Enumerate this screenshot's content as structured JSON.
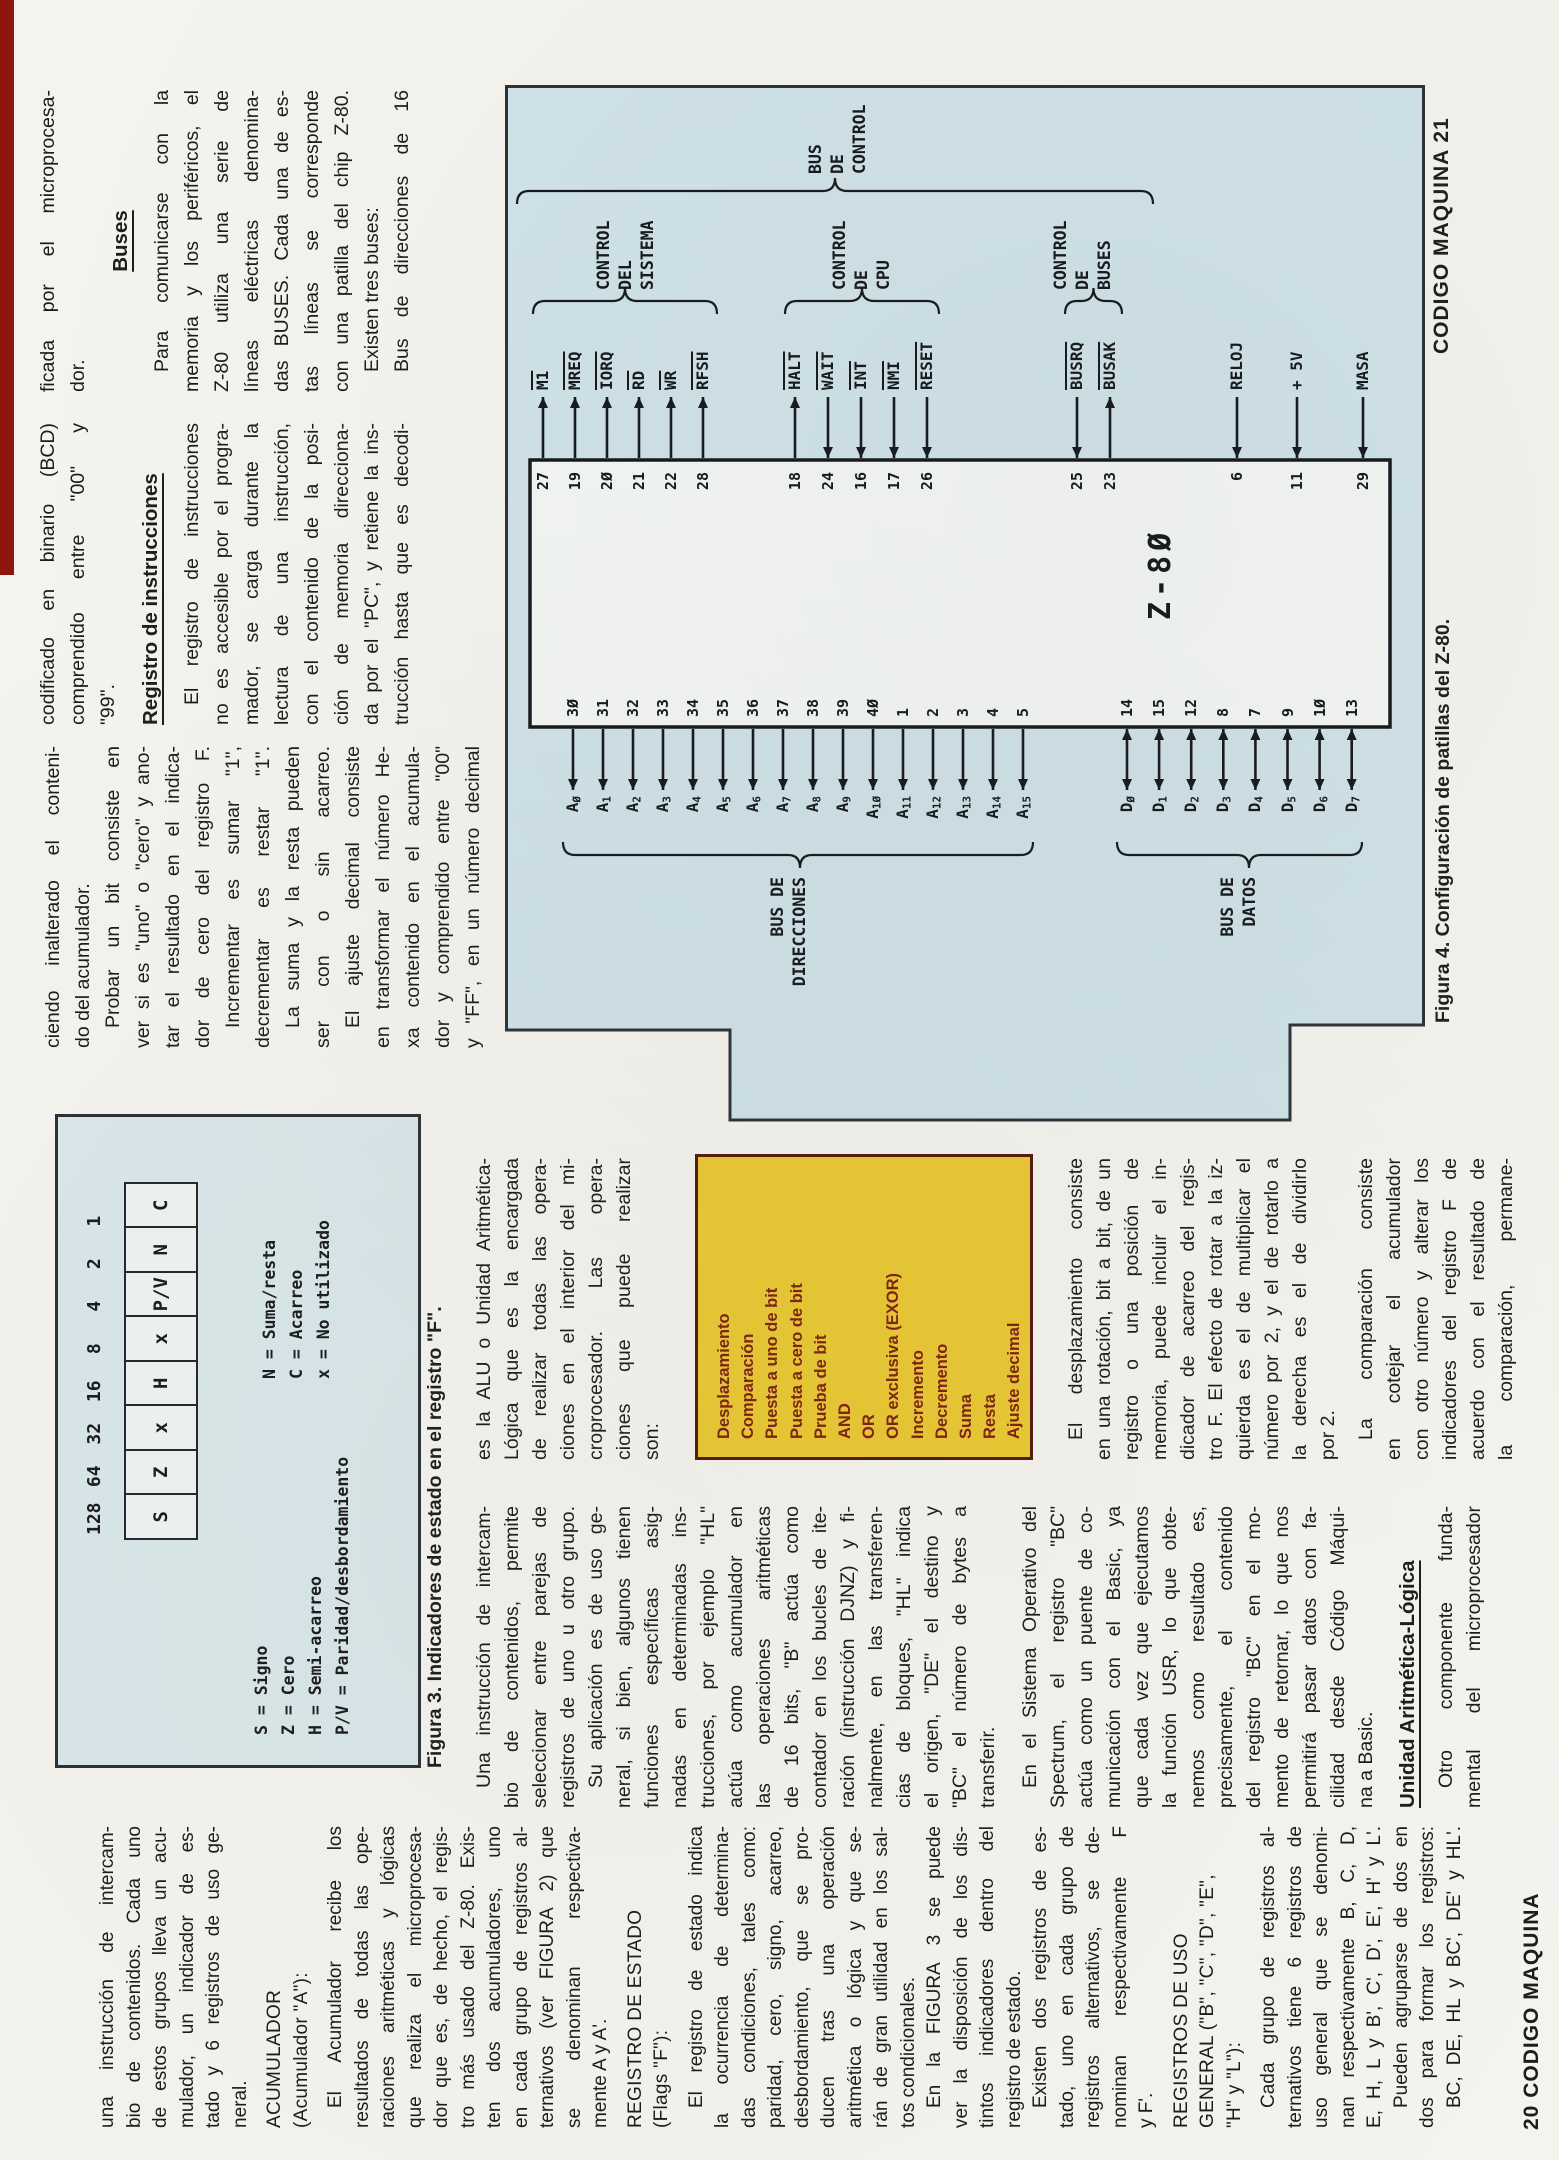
{
  "footer_left": "20 CODIGO MAQUINA",
  "footer_right": "CODIGO MAQUINA 21",
  "colors": {
    "paper": "#f4f3ee",
    "fig4_box": "#cfe2e8",
    "fig3_box": "#d9e7ea",
    "yellow_box": "#e9c832",
    "yellow_text": "#7c2110",
    "red_bar": "#8e160e",
    "ink": "#1b1b1b"
  },
  "col1": {
    "p1": [
      "una instrucción de intercam-",
      "bio de contenidos. Cada uno",
      "de estos grupos lleva un acu-",
      "mulador, un indicador de es-",
      "tado y 6 registros de uso ge-",
      "neral."
    ],
    "h1": [
      "ACUMULADOR",
      "(Acumulador \"A\"):"
    ],
    "p2": [
      "El Acumulador recibe los",
      "resultados de todas las ope-",
      "raciones aritméticas y lógicas",
      "que realiza el microprocesa-",
      "dor que es, de hecho, el regis-",
      "tro más usado del Z-80. Exis-",
      "ten dos acumuladores, uno",
      "en cada grupo de registros al-",
      "ternativos (ver FIGURA 2) que",
      "se denominan respectiva-",
      "mente A y A'."
    ],
    "h2": [
      "REGISTRO DE ESTADO",
      "(Flags \"F\"):"
    ],
    "p3": [
      "El registro de estado indica",
      "la ocurrencia de determina-",
      "das condiciones, tales como:",
      "paridad, cero, signo, acarreo,",
      "desbordamiento, que se pro-",
      "ducen tras una operación",
      "aritmética o lógica y que se-",
      "rán de gran utilidad en los sal-",
      "tos condicionales.",
      "En la FIGURA 3 se puede",
      "ver la disposición de los dis-",
      "tintos indicadores dentro del",
      "registro de estado.",
      "Existen dos registros de es-",
      "tado, uno en cada grupo de",
      "registros alternativos, se de-",
      "nominan respectivamente F",
      "y F'."
    ],
    "h3": [
      "REGISTROS DE USO",
      "GENERAL (\"B\", \"C\", \"D\", \"E\",",
      "\"H\" y \"L\"):"
    ],
    "p4": [
      "Cada grupo de registros al-",
      "ternativos tiene 6 registros de",
      "uso general que se denomi-",
      "nan respectivamente B, C, D,",
      "E, H, L y B', C', D', E', H' y L'.",
      "Pueden agruparse de dos en",
      "dos para formar los registros:",
      "BC, DE, HL y BC', DE' y HL'."
    ]
  },
  "col2": {
    "p1": [
      "Una instrucción de intercam-",
      "bio de contenidos, permite",
      "seleccionar entre parejas de",
      "registros de uno u otro grupo.",
      "Su aplicación es de uso ge-",
      "neral, si bien, algunos tienen",
      "funciones específicas asig-",
      "nadas en determinadas ins-",
      "trucciones, por ejemplo \"HL\"",
      "actúa como acumulador en",
      "las operaciones aritméticas",
      "de 16 bits, \"B\" actúa como",
      "contador en los bucles de ite-",
      "ración (instrucción DJNZ) y fi-",
      "nalmente, en las transferen-",
      "cias de bloques, \"HL\" indica",
      "el origen, \"DE\" el destino y",
      "\"BC\" el número de bytes a",
      "transferir."
    ],
    "p2": [
      "En el Sistema Operativo del",
      "Spectrum, el registro \"BC\"",
      "actúa como un puente de co-",
      "municación con el Basic, ya",
      "que cada vez que ejecutamos",
      "la función USR, lo que obte-",
      "nemos como resultado es,",
      "precisamente, el contenido",
      "del registro \"BC\" en el mo-",
      "mento de retornar, lo que nos",
      "permitirá pasar datos con fa-",
      "cilidad desde Código Máqui-",
      "na a Basic."
    ],
    "heading": "Unidad Aritmética-Lógica",
    "p3": [
      "Otro componente funda-",
      "mental del microprocesador"
    ]
  },
  "col3": {
    "p1": [
      "es la ALU o Unidad Aritmética-",
      "Lógica que es la encargada",
      "de realizar todas las opera-",
      "ciones en el interior del mi-",
      "croprocesador. Las opera-",
      "ciones que puede realizar",
      "son:"
    ],
    "p2": [
      "El desplazamiento consiste",
      "en una rotación, bit a bit, de un",
      "registro o una posición de",
      "memoria, puede incluir el in-",
      "dicador de acarreo del regis-",
      "tro F. El efecto de rotar a la iz-",
      "quierda es el de multiplicar el",
      "número por 2, y el de rotarlo a",
      "la derecha es el de dividirlo",
      "por 2."
    ],
    "p3": [
      "La comparación consiste",
      "en cotejar el acumulador",
      "con otro número y alterar los",
      "indicadores del registro F de",
      "acuerdo con el resultado de",
      "la comparación, permane-"
    ]
  },
  "col4": {
    "p1": [
      "ciendo inalterado el conteni-",
      "do del acumulador.",
      "Probar un bit consiste en",
      "ver si es \"uno\" o \"cero\" y ano-",
      "tar el resultado en el indica-",
      "dor de cero del registro F.",
      "Incrementar es sumar \"1\",",
      "decrementar es restar \"1\".",
      "La suma y la resta pueden",
      "ser con o sin acarreo.",
      "El ajuste decimal consiste",
      "en transformar el número He-",
      "xa contenido en el acumula-",
      "dor y comprendido entre \"00\"",
      "y \"FF\", en un número decimal"
    ]
  },
  "col5": {
    "p1": [
      "codificado en binario (BCD)",
      "comprendido entre \"00\" y",
      "\"99\"."
    ],
    "heading": "Registro de instrucciones",
    "p2": [
      "El registro de instrucciones",
      "no es accesible por el progra-",
      "mador, se carga durante la",
      "lectura de una instrucción,",
      "con el contenido de la posi-",
      "ción de memoria direcciona-",
      "da por el \"PC\", y retiene la ins-",
      "trucción hasta que es decodi-"
    ]
  },
  "col6": {
    "p1": [
      "ficada por el microprocesa-",
      "dor."
    ],
    "heading": "Buses",
    "p2": [
      "Para comunicarse con la",
      "memoria y los periféricos, el",
      "Z-80 utiliza una serie de",
      "líneas eléctricas denomina-",
      "das BUSES. Cada una de es-",
      "tas líneas se corresponde",
      "con una patilla del chip Z-80.",
      "Existen tres buses:",
      "Bus de direcciones de 16"
    ]
  },
  "fig3": {
    "values": [
      "128",
      "64",
      "32",
      "16",
      "8",
      "4",
      "2",
      "1"
    ],
    "cells": [
      "S",
      "Z",
      "x",
      "H",
      "x",
      "P/V",
      "N",
      "C"
    ],
    "legend_left": [
      "S = Signo",
      "Z = Cero",
      "H = Semi-acarreo",
      "P/V = Paridad/desbordamiento"
    ],
    "legend_right": [
      "N = Suma/resta",
      "C = Acarreo",
      "x = No utilizado"
    ],
    "caption": "Figura 3. Indicadores de estado en el registro \"F\"."
  },
  "alu_ops": [
    "Desplazamiento",
    "Comparación",
    "Puesta a uno de bit",
    "Puesta a cero de bit",
    "Prueba de bit",
    "AND",
    "OR",
    "OR exclusiva (EXOR)",
    "Incremento",
    "Decremento",
    "Suma",
    "Resta",
    "Ajuste decimal"
  ],
  "fig4": {
    "caption": "Figura 4. Configuración de patillas del Z-80.",
    "chip_label": "Z-8Ø",
    "bus_address_label": [
      "BUS DE",
      "DIRECCIONES"
    ],
    "bus_data_label": [
      "BUS DE",
      "DATOS"
    ],
    "bus_control_label": [
      "BUS",
      "DE",
      "CONTROL"
    ],
    "group_labels": [
      [
        "CONTROL",
        "DEL",
        "SISTEMA"
      ],
      [
        "CONTROL",
        "DE",
        "CPU"
      ],
      [
        "CONTROL",
        "DE",
        "BUSES"
      ]
    ],
    "address_pins": [
      {
        "l": "AØ",
        "n": "3Ø"
      },
      {
        "l": "A1",
        "n": "31"
      },
      {
        "l": "A2",
        "n": "32"
      },
      {
        "l": "A3",
        "n": "33"
      },
      {
        "l": "A4",
        "n": "34"
      },
      {
        "l": "A5",
        "n": "35"
      },
      {
        "l": "A6",
        "n": "36"
      },
      {
        "l": "A7",
        "n": "37"
      },
      {
        "l": "A8",
        "n": "38"
      },
      {
        "l": "A9",
        "n": "39"
      },
      {
        "l": "A1Ø",
        "n": "4Ø"
      },
      {
        "l": "A11",
        "n": "1"
      },
      {
        "l": "A12",
        "n": "2"
      },
      {
        "l": "A13",
        "n": "3"
      },
      {
        "l": "A14",
        "n": "4"
      },
      {
        "l": "A15",
        "n": "5"
      }
    ],
    "data_pins": [
      {
        "l": "DØ",
        "n": "14"
      },
      {
        "l": "D1",
        "n": "15"
      },
      {
        "l": "D2",
        "n": "12"
      },
      {
        "l": "D3",
        "n": "8"
      },
      {
        "l": "D4",
        "n": "7"
      },
      {
        "l": "D5",
        "n": "9"
      },
      {
        "l": "D6",
        "n": "1Ø"
      },
      {
        "l": "D7",
        "n": "13"
      }
    ],
    "control_pins": [
      {
        "l": "M1",
        "n": "27",
        "ov": 1,
        "d": "out"
      },
      {
        "l": "MREQ",
        "n": "19",
        "ov": 1,
        "d": "out"
      },
      {
        "l": "IORQ",
        "n": "2Ø",
        "ov": 1,
        "d": "out"
      },
      {
        "l": "RD",
        "n": "21",
        "ov": 1,
        "d": "out"
      },
      {
        "l": "WR",
        "n": "22",
        "ov": 1,
        "d": "out"
      },
      {
        "l": "RFSH",
        "n": "28",
        "ov": 1,
        "d": "out"
      },
      {
        "l": "HALT",
        "n": "18",
        "ov": 1,
        "d": "out"
      },
      {
        "l": "WAIT",
        "n": "24",
        "ov": 1,
        "d": "in"
      },
      {
        "l": "INT",
        "n": "16",
        "ov": 1,
        "d": "in"
      },
      {
        "l": "NMI",
        "n": "17",
        "ov": 1,
        "d": "in"
      },
      {
        "l": "RESET",
        "n": "26",
        "ov": 1,
        "d": "in"
      },
      {
        "l": "BUSRQ",
        "n": "25",
        "ov": 1,
        "d": "in"
      },
      {
        "l": "BUSAK",
        "n": "23",
        "ov": 1,
        "d": "out"
      },
      {
        "l": "RELOJ",
        "n": "6",
        "ov": 0,
        "d": "in"
      },
      {
        "l": "+ 5V",
        "n": "11",
        "ov": 0,
        "d": "in"
      },
      {
        "l": "MASA",
        "n": "29",
        "ov": 0,
        "d": "in"
      }
    ]
  }
}
